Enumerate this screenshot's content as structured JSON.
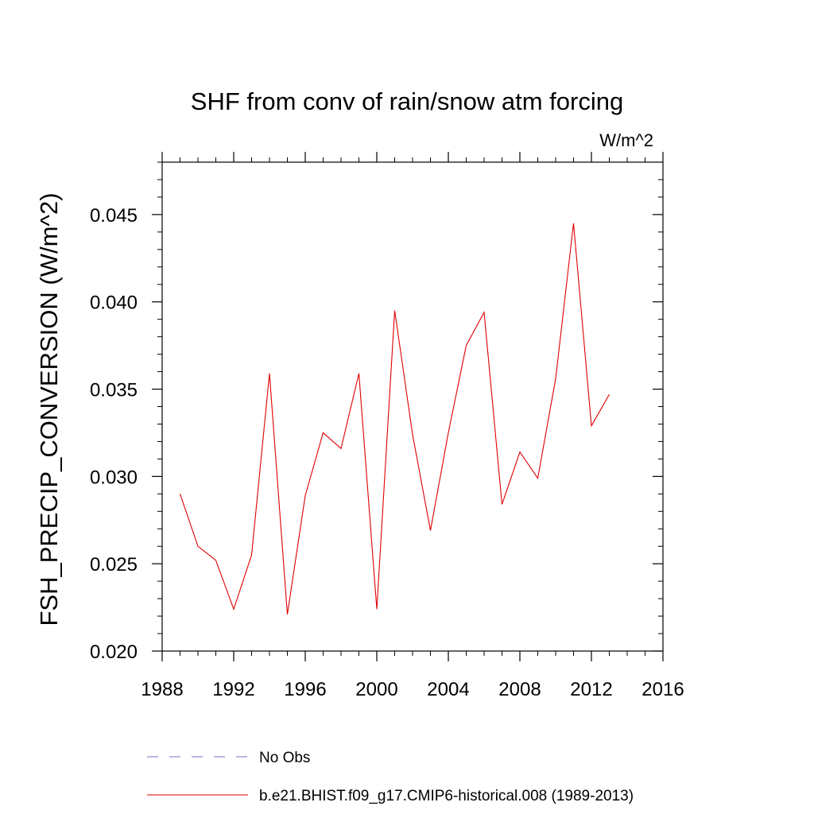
{
  "chart_data": {
    "type": "line",
    "title": "SHF from conv of rain/snow atm forcing",
    "units_label": "W/m^2",
    "xlabel": "",
    "ylabel": "FSH_PRECIP_CONVERSION  (W/m^2)",
    "xlim": [
      1988,
      2016
    ],
    "ylim": [
      0.02,
      0.048
    ],
    "x_ticks": [
      1988,
      1992,
      1996,
      2000,
      2004,
      2008,
      2012,
      2016
    ],
    "x_tick_labels": [
      "1988",
      "1992",
      "1996",
      "2000",
      "2004",
      "2008",
      "2012",
      "2016"
    ],
    "y_ticks": [
      0.02,
      0.025,
      0.03,
      0.035,
      0.04,
      0.045
    ],
    "y_tick_labels": [
      "0.020",
      "0.025",
      "0.030",
      "0.035",
      "0.040",
      "0.045"
    ],
    "grid": false,
    "legend_position": "bottom",
    "series": [
      {
        "name": "b.e21.BHIST.f09_g17.CMIP6-historical.008 (1989-2013)",
        "color": "#e00000",
        "style": "solid",
        "x": [
          1989,
          1990,
          1991,
          1992,
          1993,
          1994,
          1995,
          1996,
          1997,
          1998,
          1999,
          2000,
          2001,
          2002,
          2003,
          2004,
          2005,
          2006,
          2007,
          2008,
          2009,
          2010,
          2011,
          2012,
          2013
        ],
        "y": [
          0.029,
          0.026,
          0.0252,
          0.0224,
          0.0255,
          0.0359,
          0.0221,
          0.0289,
          0.0325,
          0.0316,
          0.0359,
          0.0224,
          0.0395,
          0.0324,
          0.0269,
          0.0325,
          0.0375,
          0.0394,
          0.0284,
          0.0314,
          0.0299,
          0.0356,
          0.0445,
          0.0329,
          0.0347
        ]
      }
    ],
    "legend": [
      {
        "label": "No Obs",
        "color": "#7070c0",
        "style": "dashed"
      },
      {
        "label": "b.e21.BHIST.f09_g17.CMIP6-historical.008 (1989-2013)",
        "color": "#e00000",
        "style": "solid"
      }
    ]
  }
}
